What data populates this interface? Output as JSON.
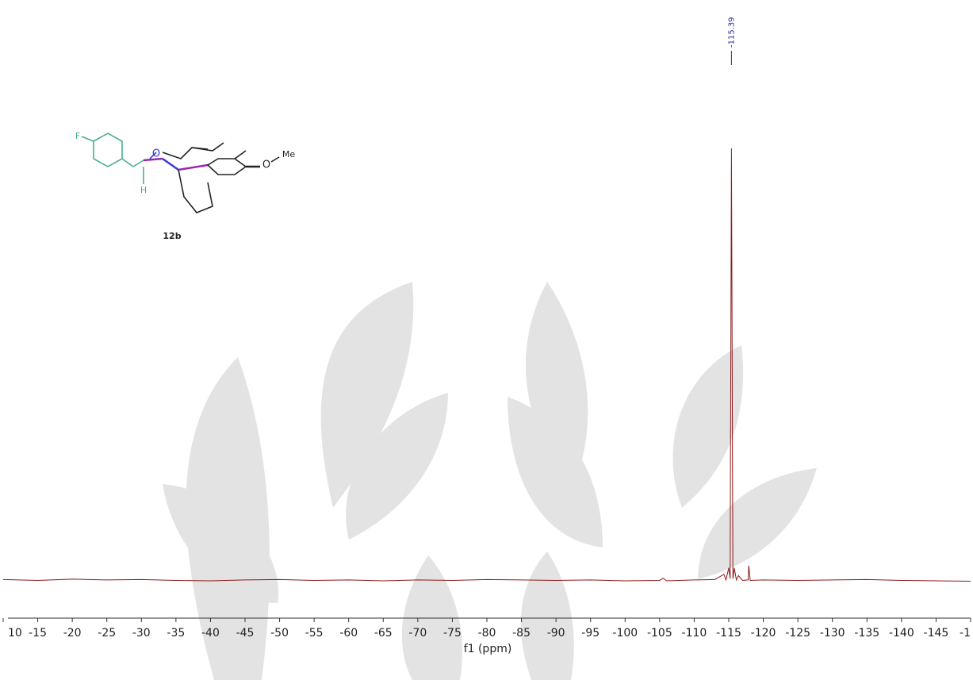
{
  "chart_data": {
    "type": "line",
    "x_label": "f1 (ppm)",
    "compound_label": "12b",
    "structure_labels": [
      "F",
      "O",
      "H",
      "O",
      "Me"
    ],
    "peak_labels": [
      -115.39
    ],
    "xlim": [
      -10,
      -150
    ],
    "ylim": [
      -20,
      100
    ],
    "xticks": [
      {
        "value": -10,
        "label": "10"
      },
      -15,
      -20,
      -25,
      -30,
      -35,
      -40,
      -45,
      -50,
      -55,
      -60,
      -65,
      -70,
      -75,
      -80,
      -85,
      -90,
      -95,
      -100,
      -105,
      -110,
      -115,
      -120,
      -125,
      -130,
      -135,
      -140,
      -145,
      {
        "value": -150,
        "label": "-1"
      }
    ],
    "series": [
      {
        "color": "#8b1a1a",
        "x": [
          -10,
          -15,
          -20,
          -25,
          -30,
          -35,
          -40,
          -45,
          -50,
          -55,
          -60,
          -65,
          -70,
          -75,
          -80,
          -85,
          -90,
          -95,
          -100,
          -105,
          -105.5,
          -106,
          -110,
          -113,
          -114.3,
          -114.6,
          -115.0,
          -115.2,
          -115.39,
          -115.6,
          -115.8,
          -116.1,
          -116.4,
          -117,
          -117.8,
          -117.9,
          -118.1,
          -120,
          -125,
          -130,
          -135,
          -140,
          -145,
          -150
        ],
        "values": [
          0.3,
          0.1,
          0.4,
          0.2,
          0.3,
          0.1,
          0.0,
          0.2,
          0.3,
          0.1,
          0.2,
          0,
          0.2,
          0.1,
          0.3,
          0.2,
          0.1,
          0.2,
          0,
          0.1,
          0.6,
          0,
          0.2,
          0.3,
          1.5,
          0.2,
          3,
          0.5,
          100,
          0.5,
          3,
          0.2,
          1.2,
          0.1,
          0.2,
          3.5,
          0.1,
          0.2,
          0.1,
          0.2,
          0.3,
          0.1,
          0,
          -0.1
        ]
      }
    ]
  }
}
